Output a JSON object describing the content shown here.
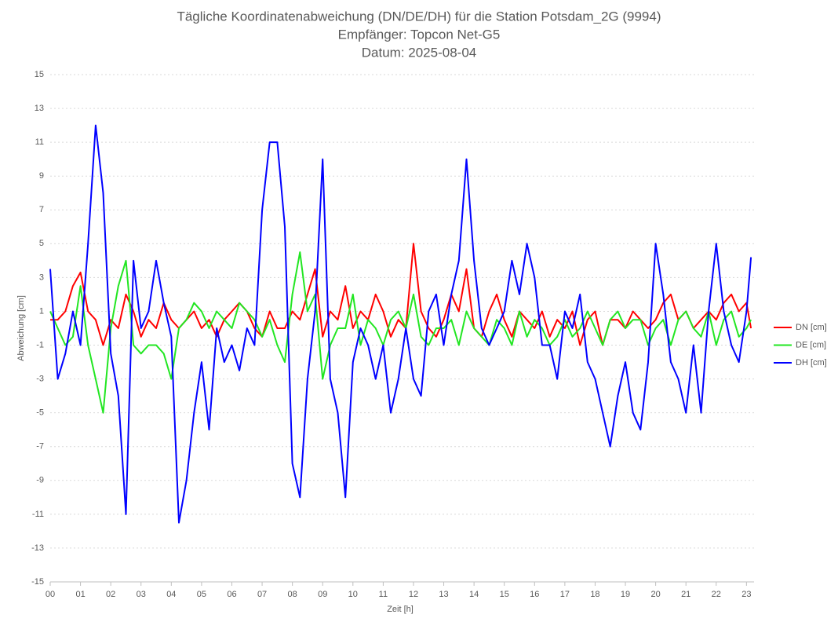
{
  "chart_data": {
    "type": "line",
    "title": [
      "Tägliche Koordinatenabweichung (DN/DE/DH) für die Station Potsdam_2G (9994)",
      "Empfänger: Topcon Net-G5",
      "Datum: 2025-08-04"
    ],
    "xlabel": "Zeit [h]",
    "ylabel": "Abweichung [cm]",
    "xlim": [
      0,
      23.25
    ],
    "ylim": [
      -15,
      15
    ],
    "xticks": [
      {
        "value": 0,
        "label": "00"
      },
      {
        "value": 1,
        "label": "01"
      },
      {
        "value": 2,
        "label": "02"
      },
      {
        "value": 3,
        "label": "03"
      },
      {
        "value": 4,
        "label": "04"
      },
      {
        "value": 5,
        "label": "05"
      },
      {
        "value": 6,
        "label": "06"
      },
      {
        "value": 7,
        "label": "07"
      },
      {
        "value": 8,
        "label": "08"
      },
      {
        "value": 9,
        "label": "09"
      },
      {
        "value": 10,
        "label": "10"
      },
      {
        "value": 11,
        "label": "11"
      },
      {
        "value": 12,
        "label": "12"
      },
      {
        "value": 13,
        "label": "13"
      },
      {
        "value": 14,
        "label": "14"
      },
      {
        "value": 15,
        "label": "15"
      },
      {
        "value": 16,
        "label": "16"
      },
      {
        "value": 17,
        "label": "17"
      },
      {
        "value": 18,
        "label": "18"
      },
      {
        "value": 19,
        "label": "19"
      },
      {
        "value": 20,
        "label": "20"
      },
      {
        "value": 21,
        "label": "21"
      },
      {
        "value": 22,
        "label": "22"
      },
      {
        "value": 23,
        "label": "23"
      }
    ],
    "yticks": [
      15,
      13,
      11,
      9,
      7,
      5,
      3,
      1,
      -1,
      -3,
      -5,
      -7,
      -9,
      -11,
      -13,
      -15
    ],
    "grid": true,
    "legend": "right",
    "x": [
      0,
      0.25,
      0.5,
      0.75,
      1,
      1.25,
      1.5,
      1.75,
      2,
      2.25,
      2.5,
      2.75,
      3,
      3.25,
      3.5,
      3.75,
      4,
      4.25,
      4.5,
      4.75,
      5,
      5.25,
      5.5,
      5.75,
      6,
      6.25,
      6.5,
      6.75,
      7,
      7.25,
      7.5,
      7.75,
      8,
      8.25,
      8.5,
      8.75,
      9,
      9.25,
      9.5,
      9.75,
      10,
      10.25,
      10.5,
      10.75,
      11,
      11.25,
      11.5,
      11.75,
      12,
      12.25,
      12.5,
      12.75,
      13,
      13.25,
      13.5,
      13.75,
      14,
      14.25,
      14.5,
      14.75,
      15,
      15.25,
      15.5,
      15.75,
      16,
      16.25,
      16.5,
      16.75,
      17,
      17.25,
      17.5,
      17.75,
      18,
      18.25,
      18.5,
      18.75,
      19,
      19.25,
      19.5,
      19.75,
      20,
      20.25,
      20.5,
      20.75,
      21,
      21.25,
      21.5,
      21.75,
      22,
      22.25,
      22.5,
      22.75,
      23,
      23.15
    ],
    "series": [
      {
        "name": "DN [cm]",
        "color": "#ff0000",
        "values": [
          0.5,
          0.5,
          1,
          2.5,
          3.3,
          1,
          0.5,
          -1,
          0.5,
          0,
          2,
          1,
          -0.5,
          0.5,
          0,
          1.5,
          0.5,
          0,
          0.5,
          1,
          0,
          0.5,
          -0.5,
          0.5,
          1,
          1.5,
          1,
          0,
          -0.5,
          1,
          0,
          0,
          1,
          0.5,
          2,
          3.5,
          -0.5,
          1,
          0.5,
          2.5,
          0,
          1,
          0.5,
          2,
          1,
          -0.5,
          0.5,
          0,
          5,
          1,
          0,
          -0.5,
          0.5,
          2,
          1,
          3.5,
          0,
          -0.5,
          1,
          2,
          0.5,
          -0.5,
          1,
          0.5,
          0,
          1,
          -0.5,
          0.5,
          0,
          1,
          -1,
          0.5,
          1,
          -1,
          0.5,
          0.5,
          0,
          1,
          0.5,
          0,
          0.5,
          1.5,
          2,
          0.5,
          1,
          0,
          0.5,
          1,
          0.5,
          1.5,
          2,
          1,
          1.5,
          0
        ]
      },
      {
        "name": "DE [cm]",
        "color": "#22e622",
        "values": [
          1,
          0,
          -1,
          -0.5,
          2.5,
          -1,
          -3,
          -5,
          0,
          2.5,
          4,
          -1,
          -1.5,
          -1,
          -1,
          -1.5,
          -3,
          0,
          0.5,
          1.5,
          1,
          0,
          1,
          0.5,
          0,
          1.5,
          1,
          0.5,
          -0.5,
          0.5,
          -1,
          -2,
          2,
          4.5,
          1,
          2,
          -3,
          -1,
          0,
          0,
          2,
          -1,
          0.5,
          0,
          -1,
          0.5,
          1,
          0,
          2,
          -0.5,
          -1,
          0,
          0,
          0.5,
          -1,
          1,
          0,
          -0.5,
          -1,
          0.5,
          0,
          -1,
          1,
          -0.5,
          0.5,
          0,
          -1,
          -0.5,
          0.5,
          -0.5,
          0,
          1,
          0,
          -1,
          0.5,
          1,
          0,
          0.5,
          0.5,
          -1,
          0,
          0.5,
          -1,
          0.5,
          1,
          0,
          -0.5,
          1,
          -1,
          0.5,
          1,
          -0.5,
          0,
          0.5
        ]
      },
      {
        "name": "DH [cm]",
        "color": "#0000ff",
        "values": [
          3.5,
          -3,
          -1.5,
          1,
          -1,
          5,
          12,
          8,
          -1.5,
          -4,
          -11,
          4,
          0,
          1,
          4,
          1.5,
          -0.5,
          -11.5,
          -9,
          -5,
          -2,
          -6,
          0,
          -2,
          -1,
          -2.5,
          0,
          -1,
          7,
          11,
          11,
          6,
          -8,
          -10,
          -3,
          1,
          10,
          -3,
          -5,
          -10,
          -2,
          0,
          -1,
          -3,
          -1,
          -5,
          -3,
          0,
          -3,
          -4,
          1,
          2,
          -1,
          2,
          4,
          10,
          4,
          0,
          -1,
          0,
          1,
          4,
          2,
          5,
          3,
          -1,
          -1,
          -3,
          1,
          0,
          2,
          -2,
          -3,
          -5,
          -7,
          -4,
          -2,
          -5,
          -6,
          -2,
          5,
          2,
          -2,
          -3,
          -5,
          -1,
          -5,
          1,
          5,
          1,
          -1,
          -2,
          1,
          4.2
        ]
      }
    ]
  }
}
